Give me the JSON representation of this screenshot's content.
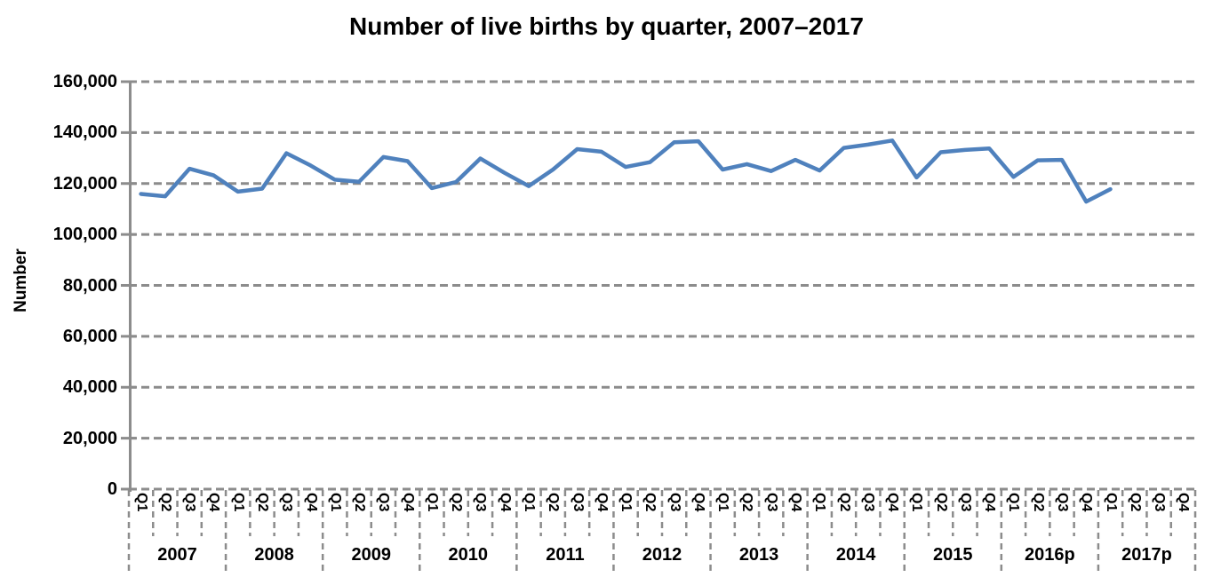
{
  "page": {
    "background": "#ffffff"
  },
  "chart_data": {
    "type": "line",
    "title": "Number of live births by quarter, 2007–2017",
    "ylabel": "Number",
    "xlabel": "",
    "ylim": [
      0,
      160000
    ],
    "ytick_interval": 20000,
    "ytick_labels": [
      "0",
      "20,000",
      "40,000",
      "60,000",
      "80,000",
      "100,000",
      "120,000",
      "140,000",
      "160,000"
    ],
    "grid": "dashed horizontal gridlines, dashed category separators below axis",
    "legend_position": "none",
    "years": [
      "2007",
      "2008",
      "2009",
      "2010",
      "2011",
      "2012",
      "2013",
      "2014",
      "2015",
      "2016p",
      "2017p"
    ],
    "quarters_per_year": [
      "Q1",
      "Q2",
      "Q3",
      "Q4"
    ],
    "data_ends_at": "2017 Q1",
    "colors": {
      "line": "#4F81BD",
      "grid": "#8C8C8C",
      "text": "#000000"
    },
    "series": [
      {
        "name": "Number of live births",
        "color": "#4F81BD",
        "values": [
          115900,
          115000,
          125800,
          123200,
          116800,
          118000,
          131900,
          127100,
          121500,
          120700,
          130400,
          128800,
          118200,
          120600,
          129800,
          124200,
          119000,
          125500,
          133500,
          132500,
          126500,
          128400,
          136200,
          136600,
          125500,
          127600,
          124900,
          129300,
          125100,
          134000,
          135300,
          136900,
          122400,
          132300,
          133200,
          133800,
          122600,
          129100,
          129300,
          112900,
          117800
        ]
      }
    ]
  }
}
